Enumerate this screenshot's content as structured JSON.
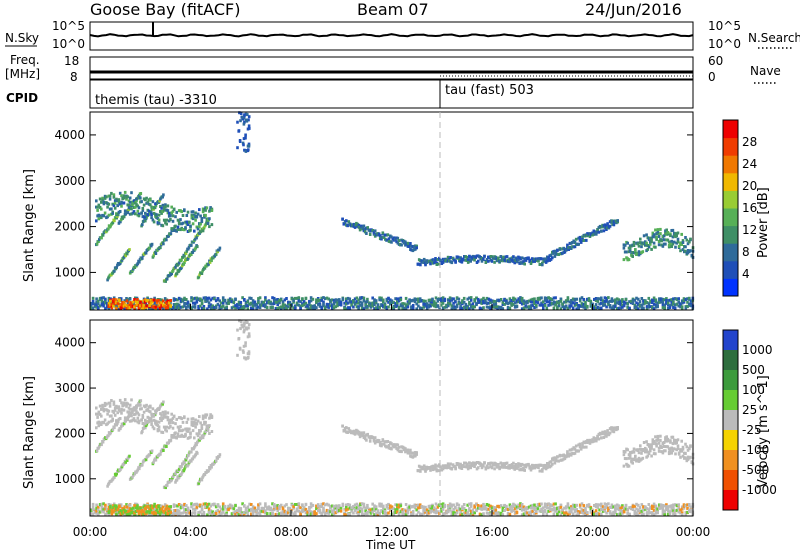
{
  "header": {
    "station": "Goose Bay (fitACF)",
    "beam": "Beam 07",
    "date": "24/Jun/2016"
  },
  "left_labels": {
    "nsky": "N.Sky",
    "freq_line1": "Freq.",
    "freq_line2": "[MHz]",
    "cpid": "CPID"
  },
  "right_labels": {
    "nsearch": "N.Search",
    "nave": "Nave"
  },
  "noise_panel": {
    "ticks_left": [
      "10^5",
      "10^0"
    ],
    "ticks_right": [
      "10^5",
      "10^0"
    ]
  },
  "freq_panel": {
    "ticks_left": [
      "18",
      "8"
    ],
    "ticks_right": [
      "60",
      "0"
    ]
  },
  "cpid_panel": {
    "mode1": "themis (tau) -3310",
    "mode2": "tau (fast) 503",
    "switch_hour": 14.0
  },
  "colors": {
    "power": [
      "#0033ff",
      "#1f4fb8",
      "#2f6b9a",
      "#3f8f66",
      "#57b057",
      "#99cc33",
      "#f0b800",
      "#f07800",
      "#f03c00",
      "#ee0000"
    ],
    "velocity": [
      "#2244cc",
      "#2e6e3e",
      "#3c9b3c",
      "#66cc33",
      "#bbbbbb",
      "#f5d300",
      "#f09020",
      "#f05000",
      "#ee0000"
    ],
    "grey": "#bbbbbb"
  },
  "chart_data": [
    {
      "type": "heatmap",
      "title": "Power",
      "xlabel": "Time UT",
      "ylabel": "Slant Range [km]",
      "xlim": [
        0,
        24
      ],
      "ylim": [
        180,
        4500
      ],
      "x_ticks": [
        "00:00",
        "04:00",
        "08:00",
        "12:00",
        "16:00",
        "20:00",
        "00:00"
      ],
      "y_ticks": [
        1000,
        2000,
        3000,
        4000
      ],
      "colorbar": {
        "label": "Power [dB]",
        "ticks": [
          "4",
          "8",
          "12",
          "16",
          "20",
          "24",
          "28"
        ],
        "range": [
          0,
          30
        ]
      },
      "features": [
        {
          "name": "ground-scatter-band",
          "x": [
            0,
            24
          ],
          "range_km": [
            180,
            450
          ],
          "power_db": 10
        },
        {
          "name": "strong-echoes",
          "x": [
            0.7,
            3.2
          ],
          "range_km": [
            180,
            420
          ],
          "power_db": 24
        },
        {
          "name": "streaks",
          "x": [
            0,
            4.5
          ],
          "range_km": [
            500,
            3000
          ],
          "power_db": 12
        },
        {
          "name": "upper-band",
          "x": [
            0.2,
            4.8
          ],
          "range_km": [
            1700,
            2700
          ],
          "power_db": 11
        },
        {
          "name": "mid-band",
          "x": [
            10,
            21
          ],
          "range_km": [
            1000,
            2400
          ],
          "power_db": 8
        },
        {
          "name": "right-band",
          "x": [
            21.2,
            24
          ],
          "range_km": [
            1400,
            2300
          ],
          "power_db": 12
        }
      ]
    },
    {
      "type": "heatmap",
      "title": "Velocity",
      "xlabel": "Time UT",
      "ylabel": "Slant Range [km]",
      "xlim": [
        0,
        24
      ],
      "ylim": [
        180,
        4500
      ],
      "x_ticks": [
        "00:00",
        "04:00",
        "08:00",
        "12:00",
        "16:00",
        "20:00",
        "00:00"
      ],
      "y_ticks": [
        1000,
        2000,
        3000,
        4000
      ],
      "colorbar": {
        "label": "Velocity [m s^-1]",
        "ticks": [
          "1000",
          "500",
          "100",
          "25",
          "-25",
          "-100",
          "-500",
          "-1000"
        ]
      }
    }
  ],
  "time_axis": {
    "labels": [
      "00:00",
      "04:00",
      "08:00",
      "12:00",
      "16:00",
      "20:00",
      "00:00"
    ],
    "title": "Time UT"
  }
}
